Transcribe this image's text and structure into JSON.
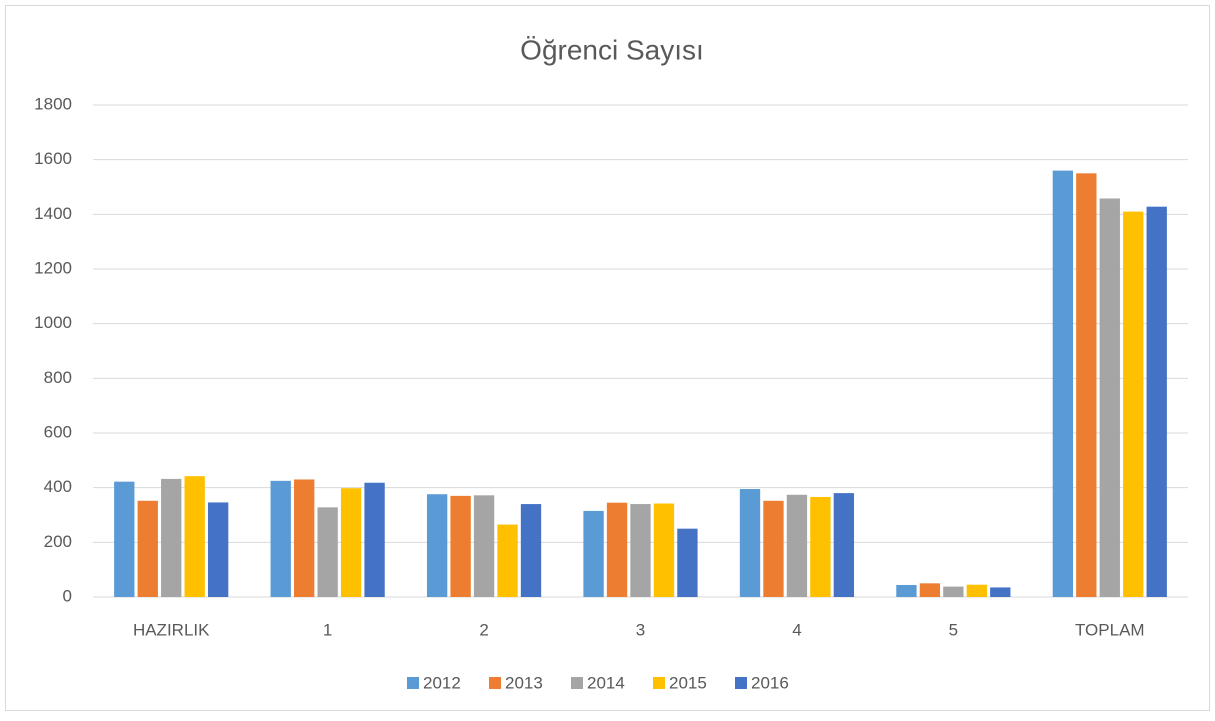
{
  "chart_data": {
    "type": "bar",
    "title": "Öğrenci Sayısı",
    "categories": [
      "HAZIRLIK",
      "1",
      "2",
      "3",
      "4",
      "5",
      "TOPLAM"
    ],
    "series": [
      {
        "name": "2012",
        "color": "#5b9bd5",
        "values": [
          422,
          425,
          376,
          315,
          395,
          44,
          1560
        ]
      },
      {
        "name": "2013",
        "color": "#ed7d31",
        "values": [
          352,
          430,
          370,
          345,
          352,
          50,
          1550
        ]
      },
      {
        "name": "2014",
        "color": "#a5a5a5",
        "values": [
          432,
          328,
          372,
          340,
          374,
          38,
          1458
        ]
      },
      {
        "name": "2015",
        "color": "#ffc000",
        "values": [
          442,
          398,
          265,
          342,
          366,
          45,
          1410
        ]
      },
      {
        "name": "2016",
        "color": "#4472c4",
        "values": [
          346,
          418,
          340,
          250,
          380,
          35,
          1428
        ]
      }
    ],
    "ylim": [
      0,
      1800
    ],
    "yticks": [
      0,
      200,
      400,
      600,
      800,
      1000,
      1200,
      1400,
      1600,
      1800
    ],
    "grid": true,
    "legend": "bottom"
  }
}
